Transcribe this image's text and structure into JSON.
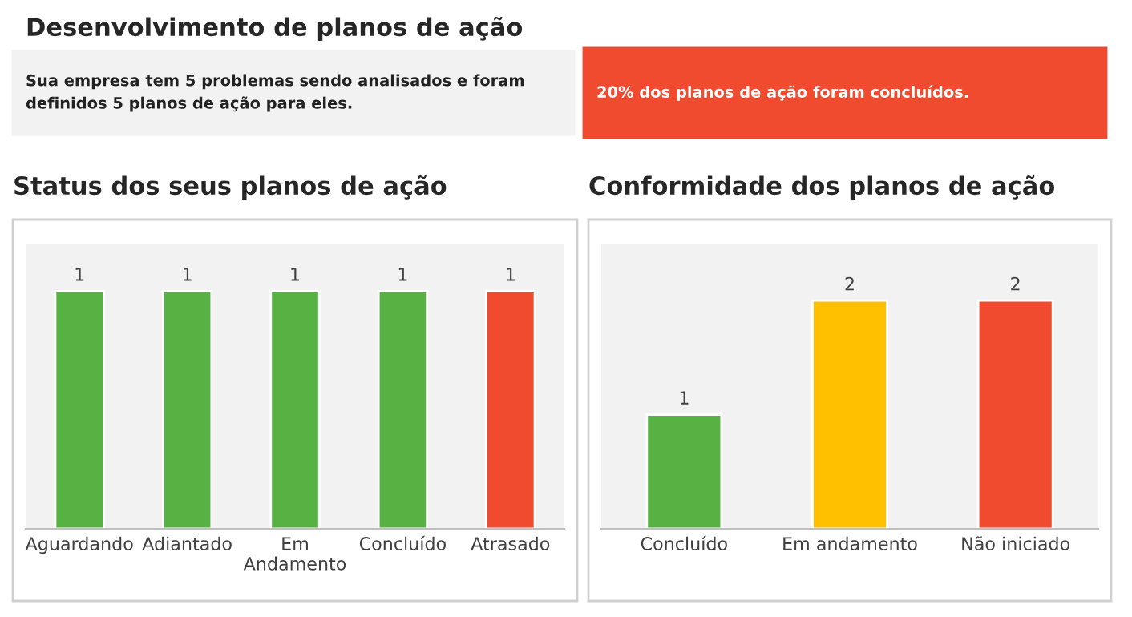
{
  "chart_data": [
    {
      "type": "other",
      "title": "Desenvolvimento de planos de ação",
      "annotations": [
        "Sua empresa tem 5 problemas sendo analisados e foram\ndefinidos 5 planos de ação para eles.",
        "20% dos planos de ação foram concluídos."
      ]
    },
    {
      "type": "bar",
      "title": "Status dos seus planos de ação",
      "categories": [
        "Aguardando",
        "Adiantado",
        "Em\nAndamento",
        "Concluído",
        "Atrasado"
      ],
      "values": [
        1,
        1,
        1,
        1,
        1
      ],
      "colors": [
        "#58b143",
        "#58b143",
        "#58b143",
        "#58b143",
        "#f04a2f"
      ],
      "ylim": [
        0,
        1.2
      ],
      "data_labels": true,
      "tick_labels": "x",
      "grid": false,
      "legend": false
    },
    {
      "type": "bar",
      "title": "Conformidade dos planos de ação",
      "categories": [
        "Concluído",
        "Em andamento",
        "Não iniciado"
      ],
      "values": [
        1,
        2,
        2
      ],
      "colors": [
        "#58b143",
        "#ffc000",
        "#f04a2f"
      ],
      "ylim": [
        0,
        2.5
      ],
      "data_labels": true,
      "tick_labels": "x",
      "grid": false,
      "legend": false
    }
  ]
}
